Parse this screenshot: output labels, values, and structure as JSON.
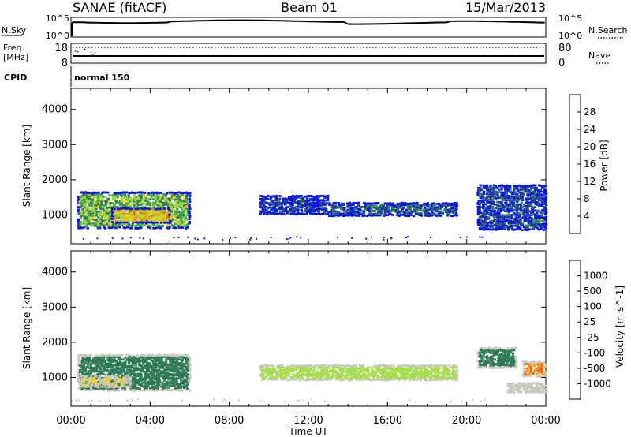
{
  "header": {
    "radar": "SANAE (fitACF)",
    "beam": "Beam 01",
    "date": "15/Mar/2013"
  },
  "top_panels": {
    "nsky_label": "N.Sky",
    "nsearch_label": "N.Search",
    "noise_ticks": [
      "10^5",
      "10^0"
    ],
    "freq_label_1": "Freq.",
    "freq_label_2": "[MHz]",
    "freq_ticks": [
      "18",
      "8"
    ],
    "nave_label": "Nave",
    "nave_ticks": [
      "80",
      "0"
    ],
    "cpid_label": "CPID",
    "cpid_value": "normal 150"
  },
  "colors": {
    "power": [
      "#0a14e6",
      "#1e3c9a",
      "#2d7a55",
      "#3aa84a",
      "#a8d437",
      "#f0c814",
      "#f59a14",
      "#e85a14",
      "#e60e0e"
    ],
    "velocity": [
      "#e60e0e",
      "#ee6414",
      "#f5a014",
      "#f0d23c",
      "#c8c8be",
      "#a8dc50",
      "#3aa84a",
      "#2d7a55",
      "#1e3c9a",
      "#1428c8"
    ]
  },
  "power_colorbar": {
    "label": "Power [dB]",
    "ticks": [
      "4",
      "8",
      "12",
      "16",
      "20",
      "24",
      "28"
    ]
  },
  "velocity_colorbar": {
    "label": "Velocity [m s^-1]",
    "ticks": [
      "-1000",
      "-500",
      "-100",
      "-25",
      "25",
      "100",
      "500",
      "1000"
    ]
  },
  "chart_data": [
    {
      "type": "heatmap",
      "panel": "power",
      "ylabel": "Slant Range [km]",
      "ylim": [
        180,
        4600
      ],
      "yticks": [
        1000,
        2000,
        3000,
        4000
      ],
      "xlim": [
        0,
        24
      ],
      "xticks": [
        "00:00",
        "04:00",
        "08:00",
        "12:00",
        "16:00",
        "20:00",
        "00:00"
      ],
      "units": "dB",
      "regions": [
        {
          "t": [
            0.3,
            6.0
          ],
          "r": [
            650,
            1700
          ],
          "value": 14
        },
        {
          "t": [
            2.0,
            5.0
          ],
          "r": [
            800,
            1250
          ],
          "value": 20
        },
        {
          "t": [
            9.5,
            13.0
          ],
          "r": [
            1050,
            1600
          ],
          "value": 5
        },
        {
          "t": [
            13.0,
            19.5
          ],
          "r": [
            1000,
            1400
          ],
          "value": 7
        },
        {
          "t": [
            20.5,
            24.0
          ],
          "r": [
            600,
            1900
          ],
          "value": 6
        },
        {
          "t": [
            23.2,
            24.0
          ],
          "r": [
            750,
            1000
          ],
          "value": 14
        }
      ]
    },
    {
      "type": "heatmap",
      "panel": "velocity",
      "ylabel": "Slant Range [km]",
      "ylim": [
        180,
        4600
      ],
      "yticks": [
        1000,
        2000,
        3000,
        4000
      ],
      "xlim": [
        0,
        24
      ],
      "xticks": [
        "00:00",
        "04:00",
        "08:00",
        "12:00",
        "16:00",
        "20:00",
        "00:00"
      ],
      "xlabel": "Time UT",
      "units": "m s^-1",
      "regions": [
        {
          "t": [
            0.3,
            6.0
          ],
          "r": [
            650,
            1700
          ],
          "value": 150
        },
        {
          "t": [
            0.3,
            3.0
          ],
          "r": [
            750,
            1100
          ],
          "value": -100
        },
        {
          "t": [
            9.5,
            19.5
          ],
          "r": [
            950,
            1400
          ],
          "value": 0
        },
        {
          "t": [
            20.5,
            22.5
          ],
          "r": [
            1300,
            1900
          ],
          "value": 200
        },
        {
          "t": [
            22.8,
            24.0
          ],
          "r": [
            1050,
            1500
          ],
          "value": -1000
        },
        {
          "t": [
            22.0,
            24.0
          ],
          "r": [
            600,
            900
          ],
          "value": -50
        }
      ]
    }
  ]
}
